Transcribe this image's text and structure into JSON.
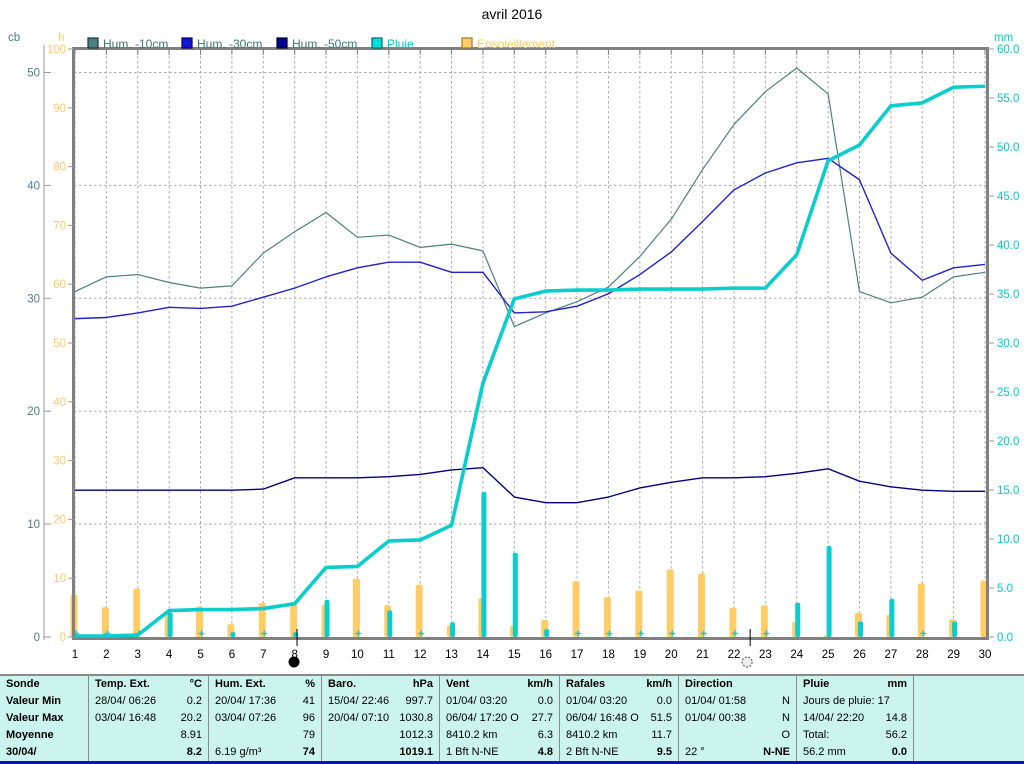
{
  "title": "avril 2016",
  "axes": {
    "cb": {
      "unit": "cb",
      "color": "#4D8080",
      "ticks": [
        0,
        10,
        20,
        30,
        40,
        50
      ],
      "max": 50
    },
    "h": {
      "unit": "h",
      "color": "#FFCC66",
      "ticks": [
        0,
        10,
        20,
        30,
        40,
        50,
        60,
        70,
        80,
        90,
        100
      ],
      "max": 100
    },
    "mm": {
      "unit": "mm",
      "color": "#00CCCC",
      "ticks": [
        0,
        5,
        10,
        15,
        20,
        25,
        30,
        35,
        40,
        45,
        50,
        55,
        60
      ],
      "max": 60
    }
  },
  "legend": [
    {
      "label": "Hum. -10cm",
      "swatch": "#4D8080",
      "border": "#173939",
      "text_color": "#3D7878"
    },
    {
      "label": "Hum. -30cm",
      "swatch": "#1414E0",
      "border": "#000060",
      "text_color": "#3D7878"
    },
    {
      "label": "Hum. -50cm",
      "swatch": "#000091",
      "border": "#000030",
      "text_color": "#3D7878"
    },
    {
      "label": "Pluie",
      "swatch": "#00E0E0",
      "border": "#006a6a",
      "text_color": "#00CCCC"
    },
    {
      "label": "Ensoleillement",
      "swatch": "#FFCC66",
      "border": "#9a7728",
      "text_color": "#FFCC66"
    }
  ],
  "chart_data": {
    "type": "mixed",
    "x": [
      1,
      2,
      3,
      4,
      5,
      6,
      7,
      8,
      9,
      10,
      11,
      12,
      13,
      14,
      15,
      16,
      17,
      18,
      19,
      20,
      21,
      22,
      23,
      24,
      25,
      26,
      27,
      28,
      29,
      30
    ],
    "title": "avril 2016",
    "series": [
      {
        "name": "Hum. -10cm",
        "type": "line",
        "axis": "cb",
        "color": "#4D8080",
        "values": [
          30.6,
          31.9,
          32.1,
          31.4,
          30.9,
          31.1,
          34.0,
          35.9,
          37.6,
          35.4,
          35.6,
          34.5,
          34.8,
          34.2,
          27.5,
          28.7,
          29.7,
          31.0,
          33.7,
          37.0,
          41.4,
          45.4,
          48.3,
          50.4,
          48.1,
          30.6,
          29.6,
          30.1,
          31.9,
          32.3
        ]
      },
      {
        "name": "Hum. -30cm",
        "type": "line",
        "axis": "cb",
        "color": "#2121CE",
        "values": [
          28.2,
          28.3,
          28.7,
          29.2,
          29.1,
          29.3,
          30.1,
          30.9,
          31.9,
          32.7,
          33.2,
          33.2,
          32.3,
          32.3,
          28.7,
          28.8,
          29.3,
          30.4,
          32.1,
          34.1,
          36.8,
          39.6,
          41.1,
          42.0,
          42.4,
          40.5,
          34.0,
          31.6,
          32.7,
          33.0
        ]
      },
      {
        "name": "Hum. -50cm",
        "type": "line",
        "axis": "cb",
        "color": "#000080",
        "values": [
          13.0,
          13.0,
          13.0,
          13.0,
          13.0,
          13.0,
          13.1,
          14.1,
          14.1,
          14.1,
          14.2,
          14.4,
          14.8,
          15.0,
          12.4,
          11.9,
          11.9,
          12.4,
          13.2,
          13.7,
          14.1,
          14.1,
          14.2,
          14.5,
          14.9,
          13.8,
          13.3,
          13.0,
          12.9,
          12.9
        ]
      },
      {
        "name": "Pluie cumul",
        "type": "line",
        "axis": "mm",
        "color": "#0ACDCD",
        "values": [
          0.1,
          0.1,
          0.2,
          2.7,
          2.8,
          2.8,
          2.9,
          3.4,
          7.1,
          7.2,
          9.8,
          9.9,
          11.4,
          25.9,
          34.5,
          35.3,
          35.4,
          35.4,
          35.5,
          35.5,
          35.5,
          35.6,
          35.6,
          39.0,
          48.6,
          50.2,
          54.2,
          54.5,
          56.1,
          56.2
        ]
      },
      {
        "name": "Pluie jour",
        "type": "bar",
        "axis": "mm",
        "color": "#0ACDCD",
        "values": [
          0.1,
          0.1,
          0.1,
          2.5,
          0.1,
          0.5,
          0.1,
          0.5,
          3.8,
          0.1,
          2.7,
          0.2,
          1.5,
          14.8,
          8.6,
          0.8,
          0.1,
          0.1,
          0.1,
          0.1,
          0.1,
          0.1,
          0.1,
          3.5,
          9.3,
          1.6,
          3.9,
          0.1,
          1.6,
          0.0
        ]
      },
      {
        "name": "Ensoleillement",
        "type": "bar",
        "axis": "h",
        "color": "#FFCC66",
        "values": [
          7.2,
          5.1,
          8.2,
          4.2,
          5.2,
          2.2,
          5.8,
          5.6,
          5.5,
          9.9,
          5.4,
          8.9,
          2.0,
          6.6,
          1.9,
          2.9,
          9.5,
          6.8,
          7.9,
          11.5,
          10.8,
          5.0,
          5.4,
          2.6,
          0.3,
          4.1,
          3.8,
          9.1,
          3.0,
          9.6
        ]
      }
    ],
    "moons": [
      {
        "phase": "new",
        "day": 7.98
      },
      {
        "phase": "full",
        "day": 22.42
      }
    ]
  },
  "table": {
    "row_headers": [
      "Sonde",
      "Valeur Min",
      "Valeur Max",
      "Moyenne",
      "30/04/"
    ],
    "columns": [
      {
        "id": "temp",
        "header": {
          "l": "Temp. Ext.",
          "r": "°C"
        },
        "rows": [
          [
            "28/04/  06:26",
            "0.2"
          ],
          [
            "03/04/  16:48",
            "20.2"
          ],
          [
            "",
            "8.91"
          ],
          [
            "",
            "8.2"
          ]
        ]
      },
      {
        "id": "hum",
        "header": {
          "l": "Hum. Ext.",
          "r": "%"
        },
        "rows": [
          [
            "20/04/  17:36",
            "41"
          ],
          [
            "03/04/  07:26",
            "96"
          ],
          [
            "",
            "79"
          ],
          [
            "6.19 g/m³",
            "74"
          ]
        ]
      },
      {
        "id": "baro",
        "header": {
          "l": "Baro.",
          "r": "hPa"
        },
        "rows": [
          [
            "15/04/  22:46",
            "997.7"
          ],
          [
            "20/04/  07:10",
            "1030.8"
          ],
          [
            "",
            "1012.3"
          ],
          [
            "",
            "1019.1"
          ]
        ]
      },
      {
        "id": "vent",
        "header": {
          "l": "Vent",
          "r": "km/h"
        },
        "rows": [
          [
            "01/04/  03:20",
            "0.0"
          ],
          [
            "06/04/  17:20 O",
            "27.7"
          ],
          [
            "8410.2 km",
            "6.3"
          ],
          [
            "1 Bft N-NE",
            "4.8"
          ]
        ]
      },
      {
        "id": "rafales",
        "header": {
          "l": "Rafales",
          "r": "km/h"
        },
        "rows": [
          [
            "01/04/  03:20",
            "0.0"
          ],
          [
            "06/04/  16:48 O",
            "51.5"
          ],
          [
            "8410.2 km",
            "11.7"
          ],
          [
            "2 Bft N-NE",
            "9.5"
          ]
        ]
      },
      {
        "id": "direction",
        "header": {
          "l": "Direction",
          "r": ""
        },
        "rows": [
          [
            "01/04/  01:58",
            "N"
          ],
          [
            "01/04/  00:38",
            "N"
          ],
          [
            "",
            "O"
          ],
          [
            "22 °",
            "N-NE"
          ]
        ]
      },
      {
        "id": "pluie",
        "header": {
          "l": "Pluie",
          "r": "mm"
        },
        "rows": [
          [
            "Jours de pluie: 17",
            ""
          ],
          [
            "14/04/  22:20",
            "14.8"
          ],
          [
            "Total:",
            "56.2"
          ],
          [
            "56.2 mm",
            "0.0"
          ]
        ]
      }
    ]
  }
}
